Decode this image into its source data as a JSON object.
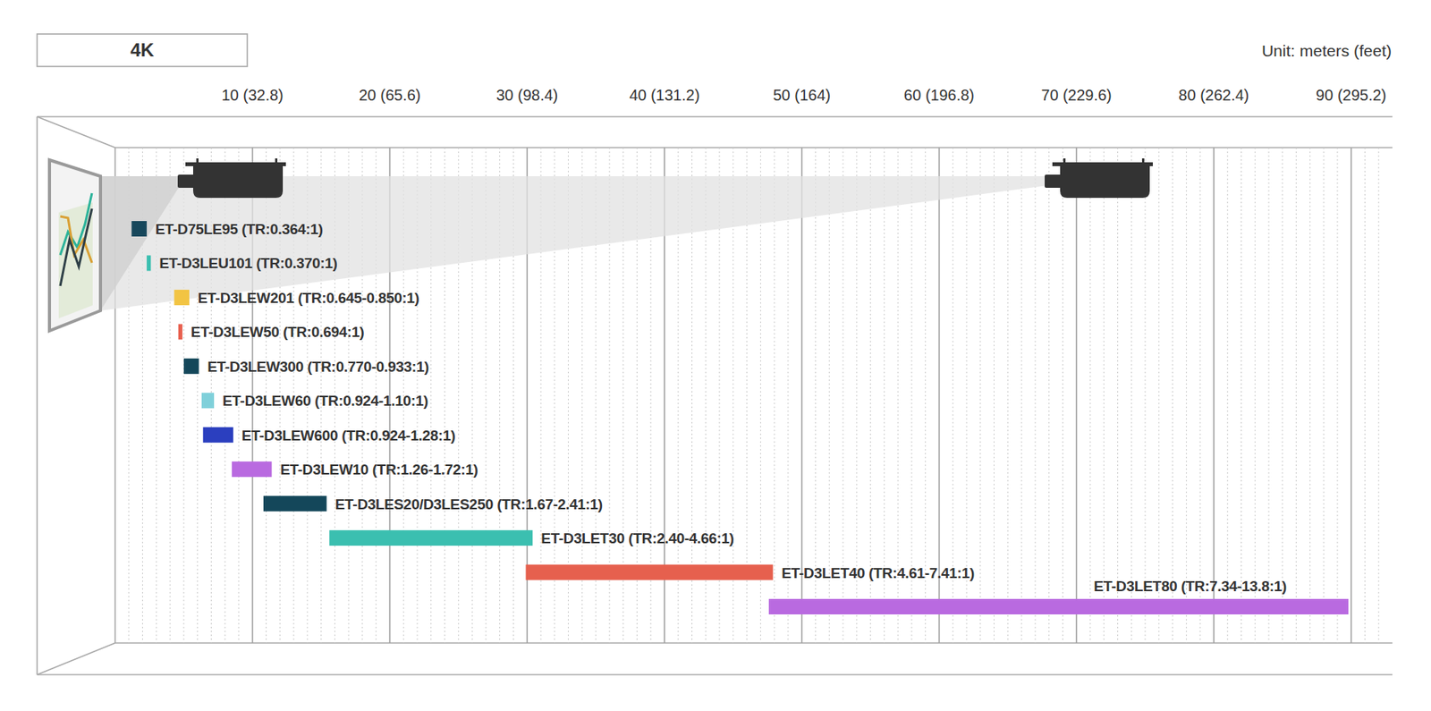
{
  "chart_data": {
    "type": "bar",
    "orientation": "horizontal",
    "title": "4K",
    "x_label": "Unit: meters (feet)",
    "categories": [
      "ET-D75LE95 (TR:0.364:1)",
      "ET-D3LEU101 (TR:0.370:1)",
      "ET-D3LEW201 (TR:0.645-0.850:1)",
      "ET-D3LEW50 (TR:0.694:1)",
      "ET-D3LEW300 (TR:0.770-0.933:1)",
      "ET-D3LEW60 (TR:0.924-1.10:1)",
      "ET-D3LEW600 (TR:0.924-1.28:1)",
      "ET-D3LEW10 (TR:1.26-1.72:1)",
      "ET-D3LES20/D3LES250 (TR:1.67-2.41:1)",
      "ET-D3LET30 (TR:2.40-4.66:1)",
      "ET-D3LET40 (TR:4.61-7.41:1)",
      "ET-D3LET80 (TR:7.34-13.8:1)"
    ],
    "start": [
      1.2,
      2.3,
      4.3,
      4.6,
      5.0,
      6.3,
      6.4,
      8.5,
      10.8,
      15.6,
      29.9,
      47.6
    ],
    "end": [
      2.3,
      2.6,
      5.4,
      4.9,
      6.1,
      7.2,
      8.6,
      11.4,
      15.4,
      30.4,
      47.9,
      89.8
    ],
    "colors": [
      "#17475b",
      "#3bbfb0",
      "#f2c443",
      "#e8604f",
      "#14475a",
      "#7fd0da",
      "#2b3fbf",
      "#b96ae0",
      "#14475a",
      "#3bbfb0",
      "#e6604e",
      "#b96ae0"
    ],
    "xlim": [
      0,
      93
    ],
    "xticks": [
      {
        "value": 10,
        "label": "10 (32.8)"
      },
      {
        "value": 20,
        "label": "20 (65.6)"
      },
      {
        "value": 30,
        "label": "30 (98.4)"
      },
      {
        "value": 40,
        "label": "40 (131.2)"
      },
      {
        "value": 50,
        "label": "50 (164)"
      },
      {
        "value": 60,
        "label": "60 (196.8)"
      },
      {
        "value": 70,
        "label": "70 (229.6)"
      },
      {
        "value": 80,
        "label": "80 (262.4)"
      },
      {
        "value": 90,
        "label": "90 (295.2)"
      }
    ],
    "grid": true
  }
}
